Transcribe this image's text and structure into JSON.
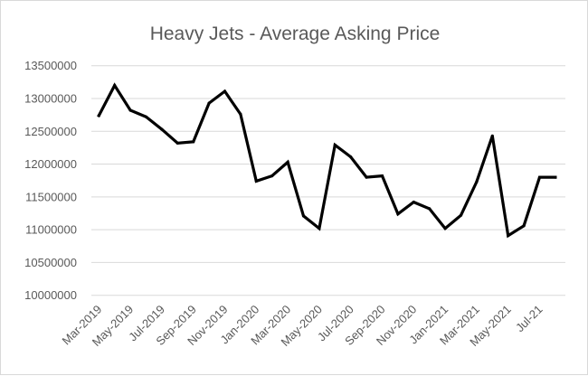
{
  "chart_data": {
    "type": "line",
    "title": "Heavy Jets - Average Asking Price",
    "xlabel": "",
    "ylabel": "",
    "ylim": [
      10000000,
      13500000
    ],
    "yticks": [
      10000000,
      10500000,
      11000000,
      11500000,
      12000000,
      12500000,
      13000000,
      13500000
    ],
    "ytick_labels": [
      "10000000",
      "10500000",
      "11000000",
      "11500000",
      "12000000",
      "12500000",
      "13000000",
      "13500000"
    ],
    "x_tick_labels": [
      "Mar-2019",
      "May-2019",
      "Jul-2019",
      "Sep-2019",
      "Nov-2019",
      "Jan-2020",
      "Mar-2020",
      "May-2020",
      "Jul-2020",
      "Sep-2020",
      "Nov-2020",
      "Jan-2021",
      "Mar-2021",
      "May-2021",
      "Jul-21"
    ],
    "x_tick_every": 2,
    "grid": true,
    "legend": "none",
    "line_color": "#000000",
    "grid_color": "#d9d9d9",
    "values": [
      12740000,
      13200000,
      12820000,
      12720000,
      12530000,
      12320000,
      12340000,
      12930000,
      13110000,
      12760000,
      11740000,
      11820000,
      12030000,
      11210000,
      11020000,
      12290000,
      12110000,
      11800000,
      11820000,
      11240000,
      11420000,
      11320000,
      11020000,
      11220000,
      11730000,
      12430000,
      10910000,
      11060000,
      11800000,
      11800000
    ]
  }
}
